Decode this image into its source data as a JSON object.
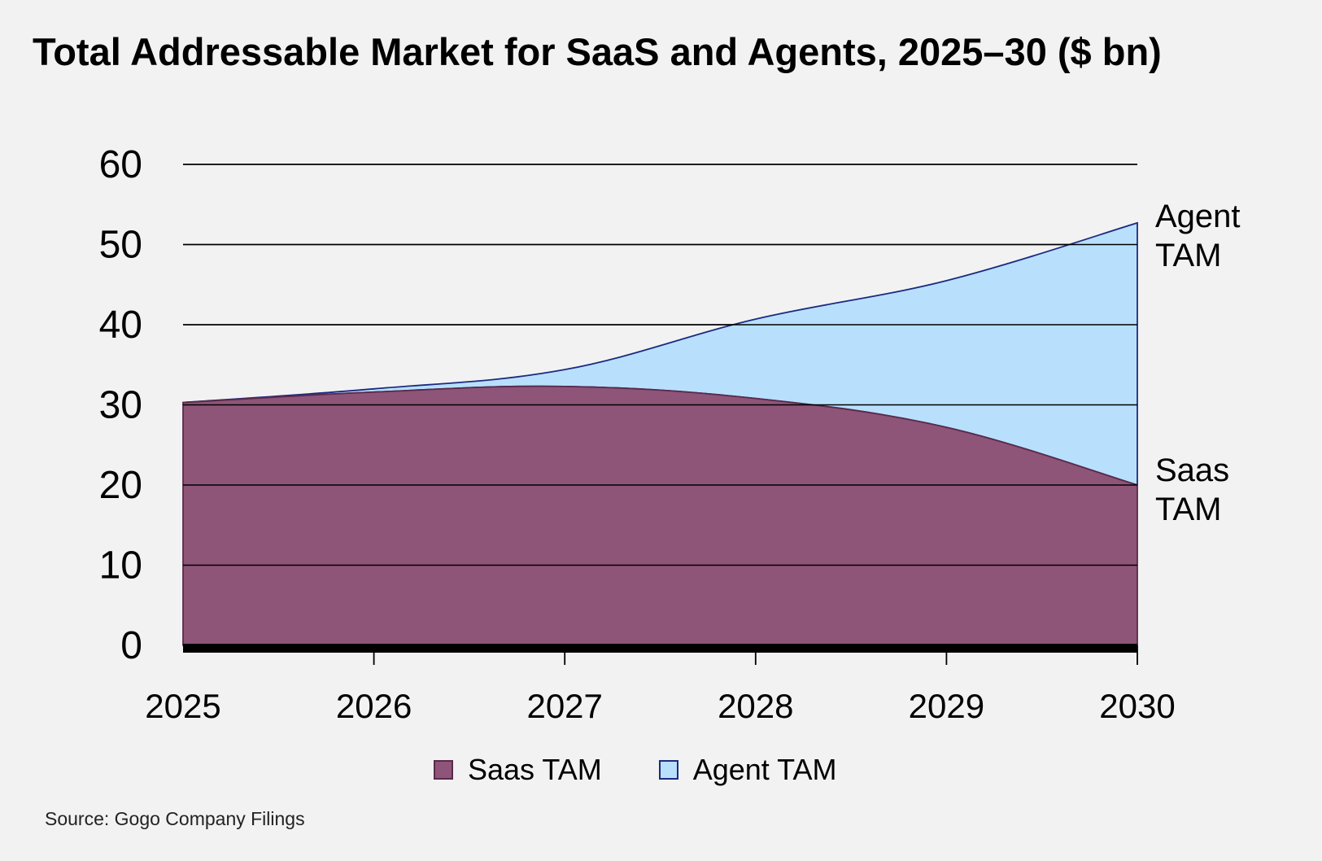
{
  "title": "Total Addressable Market for SaaS and Agents, 2025–30 ($ bn)",
  "source": "Source: Gogo Company Filings",
  "colors": {
    "saas_fill": "#8e5579",
    "saas_stroke": "#5a2a4b",
    "agent_fill": "#b8e0fc",
    "agent_stroke": "#1c2a80",
    "grid": "#000000",
    "background": "#f2f2f2"
  },
  "chart_data": {
    "type": "area",
    "stacked": true,
    "categories": [
      "2025",
      "2026",
      "2027",
      "2028",
      "2029",
      "2030"
    ],
    "x": [
      2025,
      2026,
      2027,
      2028,
      2029,
      2030
    ],
    "series": [
      {
        "name": "Saas TAM",
        "values": [
          30.3,
          31.6,
          32.3,
          30.8,
          27.2,
          20.0
        ],
        "end_label": [
          "Saas",
          "TAM"
        ]
      },
      {
        "name": "Agent TAM",
        "values": [
          0,
          0.4,
          2.1,
          9.9,
          18.3,
          32.7
        ],
        "end_label": [
          "Agent",
          "TAM"
        ]
      }
    ],
    "totals": [
      30.3,
      32.0,
      34.4,
      40.7,
      45.5,
      52.7
    ],
    "yticks": [
      0,
      10,
      20,
      30,
      40,
      50,
      60
    ],
    "ylim": [
      0,
      60
    ],
    "grid": true,
    "legend": "bottom-center",
    "xlabel": "",
    "ylabel": ""
  }
}
